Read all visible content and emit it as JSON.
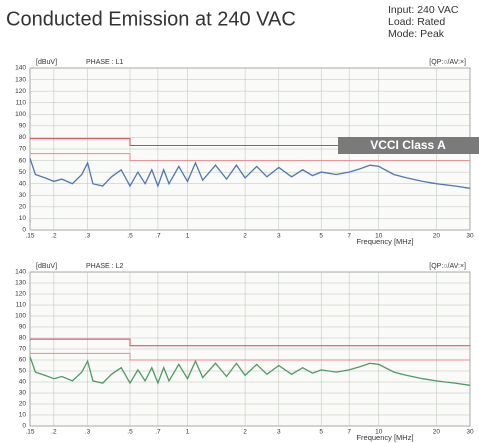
{
  "title": "Conducted Emission at 240 VAC",
  "notes": [
    "Input: 240 VAC",
    "Load: Rated",
    "Mode: Peak"
  ],
  "chart_data": [
    {
      "type": "line",
      "y_label": "[dBuV]",
      "subtitle": "PHASE :  L1",
      "legend_note": "[QP:○/AV:×]",
      "x_label": "Frequency [MHz]",
      "annotation": "VCCI Class A",
      "log_x": true,
      "grid": true,
      "xlim": [
        0.15,
        30
      ],
      "xticks": [
        {
          "value": 0.15,
          "label": ".15"
        },
        {
          "value": 0.2,
          "label": ".2"
        },
        {
          "value": 0.3,
          "label": ".3"
        },
        {
          "value": 0.5,
          "label": ".5"
        },
        {
          "value": 0.7,
          "label": ".7"
        },
        1,
        2,
        3,
        5,
        7,
        10,
        20,
        30
      ],
      "ylim": [
        0,
        140
      ],
      "yticks": [
        0,
        10,
        20,
        30,
        40,
        50,
        60,
        70,
        80,
        90,
        100,
        110,
        120,
        130,
        140
      ],
      "series": [
        {
          "color": "#4f78b0",
          "x": [
            0.15,
            0.16,
            0.18,
            0.2,
            0.22,
            0.25,
            0.28,
            0.3,
            0.32,
            0.36,
            0.4,
            0.45,
            0.5,
            0.55,
            0.6,
            0.65,
            0.7,
            0.75,
            0.8,
            0.9,
            1.0,
            1.1,
            1.2,
            1.4,
            1.6,
            1.8,
            2,
            2.3,
            2.6,
            3,
            3.5,
            4,
            4.5,
            5,
            6,
            7,
            8,
            9,
            10,
            12,
            14,
            17,
            20,
            25,
            30
          ],
          "values": [
            62,
            48,
            45,
            42,
            44,
            40,
            48,
            58,
            40,
            38,
            46,
            52,
            38,
            50,
            40,
            52,
            38,
            52,
            40,
            55,
            42,
            58,
            43,
            56,
            44,
            56,
            45,
            55,
            46,
            54,
            46,
            52,
            47,
            50,
            48,
            50,
            53,
            56,
            55,
            48,
            45,
            42,
            40,
            38,
            36
          ]
        },
        {
          "color": "#d9434a",
          "x": [
            0.15,
            0.5,
            0.5,
            30
          ],
          "values": [
            79,
            79,
            73,
            73
          ]
        },
        {
          "color": "#e58a8e",
          "x": [
            0.15,
            0.5,
            0.5,
            30
          ],
          "values": [
            66,
            66,
            60,
            60
          ]
        }
      ]
    },
    {
      "type": "line",
      "y_label": "[dBuV]",
      "subtitle": "PHASE :  L2",
      "legend_note": "[QP:○/AV:×]",
      "x_label": "Frequency [MHz]",
      "log_x": true,
      "grid": true,
      "xlim": [
        0.15,
        30
      ],
      "xticks": [
        {
          "value": 0.15,
          "label": ".15"
        },
        {
          "value": 0.2,
          "label": ".2"
        },
        {
          "value": 0.3,
          "label": ".3"
        },
        {
          "value": 0.5,
          "label": ".5"
        },
        {
          "value": 0.7,
          "label": ".7"
        },
        1,
        2,
        3,
        5,
        7,
        10,
        20,
        30
      ],
      "ylim": [
        0,
        140
      ],
      "yticks": [
        0,
        10,
        20,
        30,
        40,
        50,
        60,
        70,
        80,
        90,
        100,
        110,
        120,
        130,
        140
      ],
      "series": [
        {
          "color": "#4f9a62",
          "x": [
            0.15,
            0.16,
            0.18,
            0.2,
            0.22,
            0.25,
            0.28,
            0.3,
            0.32,
            0.36,
            0.4,
            0.45,
            0.5,
            0.55,
            0.6,
            0.65,
            0.7,
            0.75,
            0.8,
            0.9,
            1.0,
            1.1,
            1.2,
            1.4,
            1.6,
            1.8,
            2,
            2.3,
            2.6,
            3,
            3.5,
            4,
            4.5,
            5,
            6,
            7,
            8,
            9,
            10,
            12,
            14,
            17,
            20,
            25,
            30
          ],
          "values": [
            63,
            49,
            46,
            43,
            45,
            41,
            49,
            59,
            41,
            39,
            47,
            53,
            39,
            51,
            41,
            53,
            39,
            53,
            41,
            56,
            43,
            59,
            44,
            57,
            45,
            57,
            46,
            56,
            47,
            55,
            47,
            53,
            48,
            51,
            49,
            51,
            54,
            57,
            56,
            49,
            46,
            43,
            41,
            39,
            37
          ]
        },
        {
          "color": "#d9434a",
          "x": [
            0.15,
            0.5,
            0.5,
            30
          ],
          "values": [
            79,
            79,
            73,
            73
          ]
        },
        {
          "color": "#e58a8e",
          "x": [
            0.15,
            0.5,
            0.5,
            30
          ],
          "values": [
            66,
            66,
            60,
            60
          ]
        }
      ]
    }
  ]
}
